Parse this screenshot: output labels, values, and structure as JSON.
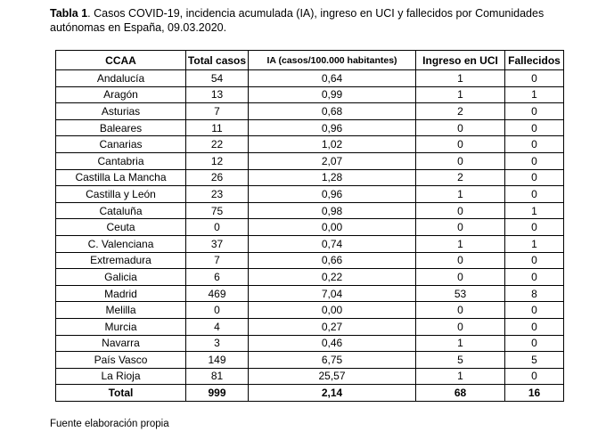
{
  "caption": {
    "label": "Tabla 1",
    "text": ". Casos COVID-19, incidencia acumulada (IA), ingreso en UCI y fallecidos por Comunidades autónomas en España, 09.03.2020."
  },
  "table": {
    "headers": [
      "CCAA",
      "Total casos",
      "IA (casos/100.000 habitantes)",
      "Ingreso en UCI",
      "Fallecidos"
    ],
    "rows": [
      [
        "Andalucía",
        "54",
        "0,64",
        "1",
        "0"
      ],
      [
        "Aragón",
        "13",
        "0,99",
        "1",
        "1"
      ],
      [
        "Asturias",
        "7",
        "0,68",
        "2",
        "0"
      ],
      [
        "Baleares",
        "11",
        "0,96",
        "0",
        "0"
      ],
      [
        "Canarias",
        "22",
        "1,02",
        "0",
        "0"
      ],
      [
        "Cantabria",
        "12",
        "2,07",
        "0",
        "0"
      ],
      [
        "Castilla La Mancha",
        "26",
        "1,28",
        "2",
        "0"
      ],
      [
        "Castilla y León",
        "23",
        "0,96",
        "1",
        "0"
      ],
      [
        "Cataluña",
        "75",
        "0,98",
        "0",
        "1"
      ],
      [
        "Ceuta",
        "0",
        "0,00",
        "0",
        "0"
      ],
      [
        "C. Valenciana",
        "37",
        "0,74",
        "1",
        "1"
      ],
      [
        "Extremadura",
        "7",
        "0,66",
        "0",
        "0"
      ],
      [
        "Galicia",
        "6",
        "0,22",
        "0",
        "0"
      ],
      [
        "Madrid",
        "469",
        "7,04",
        "53",
        "8"
      ],
      [
        "Melilla",
        "0",
        "0,00",
        "0",
        "0"
      ],
      [
        "Murcia",
        "4",
        "0,27",
        "0",
        "0"
      ],
      [
        "Navarra",
        "3",
        "0,46",
        "1",
        "0"
      ],
      [
        "País Vasco",
        "149",
        "6,75",
        "5",
        "5"
      ],
      [
        "La Rioja",
        "81",
        "25,57",
        "1",
        "0"
      ]
    ],
    "total": [
      "Total",
      "999",
      "2,14",
      "68",
      "16"
    ]
  },
  "source": "Fuente elaboración propia"
}
